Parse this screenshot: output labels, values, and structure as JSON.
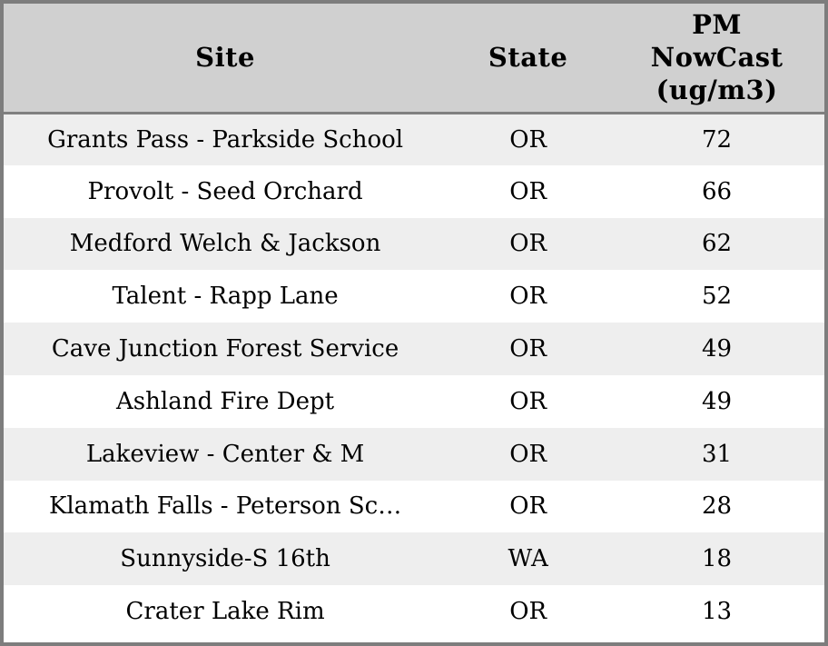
{
  "colors": {
    "outer_border": "#7d7d7d",
    "header_bg": "#d0d0d0",
    "header_divider": "#808080",
    "row_bg": "#ffffff",
    "row_alt_bg": "#eeeeee",
    "text": "#000000"
  },
  "table": {
    "columns": [
      {
        "id": "site",
        "label": "Site"
      },
      {
        "id": "state",
        "label": "State"
      },
      {
        "id": "value",
        "label": "PM NowCast (ug/m3)"
      }
    ],
    "rows": [
      {
        "site": "Grants Pass - Parkside School",
        "state": "OR",
        "value": "72"
      },
      {
        "site": "Provolt - Seed Orchard",
        "state": "OR",
        "value": "66"
      },
      {
        "site": "Medford Welch & Jackson",
        "state": "OR",
        "value": "62"
      },
      {
        "site": "Talent - Rapp Lane",
        "state": "OR",
        "value": "52"
      },
      {
        "site": "Cave Junction Forest Service",
        "state": "OR",
        "value": "49"
      },
      {
        "site": "Ashland Fire Dept",
        "state": "OR",
        "value": "49"
      },
      {
        "site": "Lakeview - Center & M",
        "state": "OR",
        "value": "31"
      },
      {
        "site": "Klamath Falls - Peterson Sc…",
        "state": "OR",
        "value": "28"
      },
      {
        "site": "Sunnyside-S 16th",
        "state": "WA",
        "value": "18"
      },
      {
        "site": "Crater Lake Rim",
        "state": "OR",
        "value": "13"
      }
    ]
  }
}
